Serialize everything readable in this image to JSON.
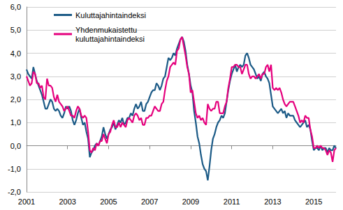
{
  "chart_data": {
    "type": "line",
    "categories": [
      "2001",
      null,
      null,
      null,
      null,
      null,
      null,
      null,
      null,
      null,
      null,
      null,
      null,
      null,
      null,
      null,
      null,
      null,
      null,
      null,
      null,
      null,
      null,
      null,
      "2003",
      null,
      null,
      null,
      null,
      null,
      null,
      null,
      null,
      null,
      null,
      null,
      null,
      null,
      null,
      null,
      null,
      null,
      null,
      null,
      null,
      null,
      null,
      null,
      "2005",
      null,
      null,
      null,
      null,
      null,
      null,
      null,
      null,
      null,
      null,
      null,
      null,
      null,
      null,
      null,
      null,
      null,
      null,
      null,
      null,
      null,
      null,
      null,
      "2007",
      null,
      null,
      null,
      null,
      null,
      null,
      null,
      null,
      null,
      null,
      null,
      null,
      null,
      null,
      null,
      null,
      null,
      null,
      null,
      null,
      null,
      null,
      null,
      "2009",
      null,
      null,
      null,
      null,
      null,
      null,
      null,
      null,
      null,
      null,
      null,
      null,
      null,
      null,
      null,
      null,
      null,
      null,
      null,
      null,
      null,
      null,
      null,
      "2011",
      null,
      null,
      null,
      null,
      null,
      null,
      null,
      null,
      null,
      null,
      null,
      null,
      null,
      null,
      null,
      null,
      null,
      null,
      null,
      null,
      null,
      null,
      null,
      "2013",
      null,
      null,
      null,
      null,
      null,
      null,
      null,
      null,
      null,
      null,
      null,
      null,
      null,
      null,
      null,
      null,
      null,
      null,
      null,
      null,
      null,
      null,
      null,
      "2015",
      null,
      null,
      null,
      null,
      null,
      null,
      null,
      null,
      null,
      null,
      null,
      null,
      null
    ],
    "series": [
      {
        "name": "Kuluttajahintaindeksi",
        "color": "#1b5a86",
        "values": [
          3.3,
          3.1,
          3.0,
          2.9,
          3.4,
          3.1,
          2.8,
          2.6,
          2.4,
          2.2,
          1.9,
          1.6,
          1.6,
          1.8,
          2.0,
          1.9,
          1.6,
          1.5,
          1.6,
          1.5,
          1.3,
          1.2,
          1.4,
          1.7,
          1.6,
          1.7,
          1.5,
          1.1,
          0.9,
          1.1,
          1.4,
          1.6,
          1.2,
          0.9,
          1.0,
          0.6,
          0.3,
          -0.5,
          -0.3,
          -0.2,
          0.0,
          0.1,
          0.0,
          0.2,
          0.4,
          0.8,
          0.5,
          0.3,
          0.5,
          0.7,
          0.8,
          1.0,
          0.7,
          0.9,
          1.1,
          1.0,
          1.2,
          0.9,
          1.0,
          1.2,
          1.2,
          1.4,
          1.3,
          1.6,
          1.8,
          1.6,
          1.7,
          1.9,
          1.5,
          1.5,
          1.8,
          1.9,
          2.1,
          2.3,
          2.4,
          2.4,
          2.7,
          2.6,
          2.4,
          2.6,
          2.9,
          3.0,
          3.4,
          3.8,
          3.7,
          3.8,
          4.0,
          3.9,
          4.2,
          4.4,
          4.6,
          4.7,
          4.5,
          4.1,
          3.5,
          3.1,
          2.6,
          2.3,
          1.5,
          1.0,
          0.4,
          0.1,
          -0.4,
          -0.8,
          -1.0,
          -1.1,
          -1.5,
          -0.9,
          -0.2,
          0.3,
          0.5,
          0.8,
          1.0,
          1.1,
          1.3,
          1.2,
          1.4,
          1.9,
          2.4,
          2.8,
          3.1,
          3.3,
          3.5,
          3.2,
          3.4,
          3.5,
          3.4,
          3.5,
          3.9,
          4.0,
          3.8,
          3.5,
          3.4,
          3.3,
          3.1,
          2.9,
          3.0,
          2.8,
          3.1,
          3.2,
          3.0,
          2.9,
          2.7,
          2.2,
          1.7,
          1.6,
          1.5,
          1.4,
          1.5,
          1.6,
          1.4,
          1.5,
          1.2,
          1.4,
          1.3,
          1.3,
          1.3,
          1.1,
          1.0,
          0.9,
          0.8,
          0.9,
          1.0,
          1.1,
          0.8,
          0.9,
          0.7,
          0.2,
          -0.2,
          -0.1,
          -0.1,
          -0.2,
          0.0,
          -0.2,
          -0.1,
          -0.1,
          -0.3,
          -0.1,
          -0.2,
          -0.2,
          0.0,
          -0.1
        ]
      },
      {
        "name": "Yhdenmukaistettu kuluttajahintaindeksi",
        "color": "#e5007d",
        "values": [
          3.0,
          2.8,
          2.6,
          2.7,
          3.2,
          3.1,
          2.7,
          2.7,
          2.5,
          2.6,
          2.1,
          2.0,
          2.9,
          2.6,
          2.6,
          2.5,
          2.1,
          1.9,
          2.2,
          1.9,
          1.8,
          1.7,
          1.5,
          1.6,
          1.7,
          1.5,
          1.3,
          1.3,
          1.2,
          1.5,
          1.7,
          1.6,
          1.3,
          1.2,
          1.3,
          1.2,
          0.6,
          -0.2,
          -0.3,
          -0.1,
          -0.2,
          0.1,
          0.0,
          0.2,
          0.2,
          0.5,
          0.3,
          0.1,
          0.5,
          0.6,
          0.9,
          1.1,
          0.8,
          0.8,
          1.0,
          0.8,
          1.0,
          0.9,
          0.8,
          1.1,
          1.2,
          1.1,
          1.0,
          1.3,
          1.4,
          1.3,
          1.1,
          1.2,
          0.9,
          0.9,
          1.2,
          1.2,
          1.3,
          1.3,
          1.5,
          1.7,
          1.6,
          1.5,
          1.5,
          1.8,
          1.9,
          2.4,
          2.8,
          3.0,
          3.4,
          3.5,
          3.6,
          3.5,
          4.1,
          4.2,
          4.6,
          4.7,
          4.3,
          3.9,
          3.4,
          3.1,
          2.3,
          2.4,
          1.9,
          1.4,
          1.2,
          1.3,
          1.1,
          1.2,
          1.0,
          0.9,
          1.8,
          1.6,
          1.5,
          1.6,
          1.6,
          1.9,
          1.9,
          1.4,
          1.4,
          1.4,
          1.7,
          1.9,
          2.5,
          2.9,
          3.4,
          3.4,
          3.5,
          3.5,
          3.4,
          3.4,
          3.1,
          3.3,
          3.5,
          3.5,
          3.1,
          2.9,
          3.0,
          3.0,
          2.9,
          3.0,
          3.1,
          2.9,
          3.1,
          3.1,
          3.4,
          3.5,
          3.2,
          3.5,
          2.5,
          2.4,
          2.5,
          2.4,
          2.5,
          2.3,
          2.0,
          1.8,
          1.7,
          1.8,
          1.9,
          1.9,
          1.9,
          1.7,
          1.5,
          1.3,
          1.0,
          1.1,
          1.0,
          1.3,
          1.2,
          1.2,
          0.7,
          0.4,
          -0.1,
          -0.1,
          0.0,
          -0.1,
          0.0,
          -0.1,
          -0.1,
          -0.2,
          -0.4,
          -0.2,
          -0.3,
          -0.7,
          -0.2,
          -0.1
        ]
      }
    ],
    "ylim": [
      -2,
      6
    ],
    "yticks": [
      {
        "value": -2,
        "label": "-2,0"
      },
      {
        "value": -1,
        "label": "-1,0"
      },
      {
        "value": 0,
        "label": "0,0"
      },
      {
        "value": 1,
        "label": "1,0"
      },
      {
        "value": 2,
        "label": "2,0"
      },
      {
        "value": 3,
        "label": "3,0"
      },
      {
        "value": 4,
        "label": "4,0"
      },
      {
        "value": 5,
        "label": "5,0"
      },
      {
        "value": 6,
        "label": "6,0"
      }
    ],
    "grid": true,
    "legend": "upper left"
  }
}
